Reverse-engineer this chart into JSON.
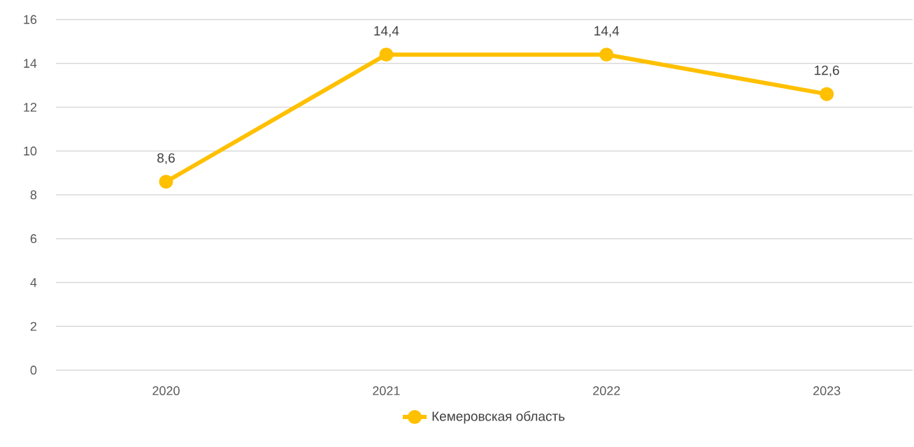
{
  "chart_data": {
    "type": "line",
    "categories": [
      "2020",
      "2021",
      "2022",
      "2023"
    ],
    "series": [
      {
        "name": "Кемеровская область",
        "color": "#ffc000",
        "values": [
          8.6,
          14.4,
          14.4,
          12.6
        ],
        "value_labels": [
          "8,6",
          "14,4",
          "14,4",
          "12,6"
        ]
      }
    ],
    "ylim": [
      0,
      16
    ],
    "yticks": [
      0,
      2,
      4,
      6,
      8,
      10,
      12,
      14,
      16
    ],
    "grid": "y",
    "legend": "bottom",
    "marker": "circle",
    "line_style": "solid"
  }
}
